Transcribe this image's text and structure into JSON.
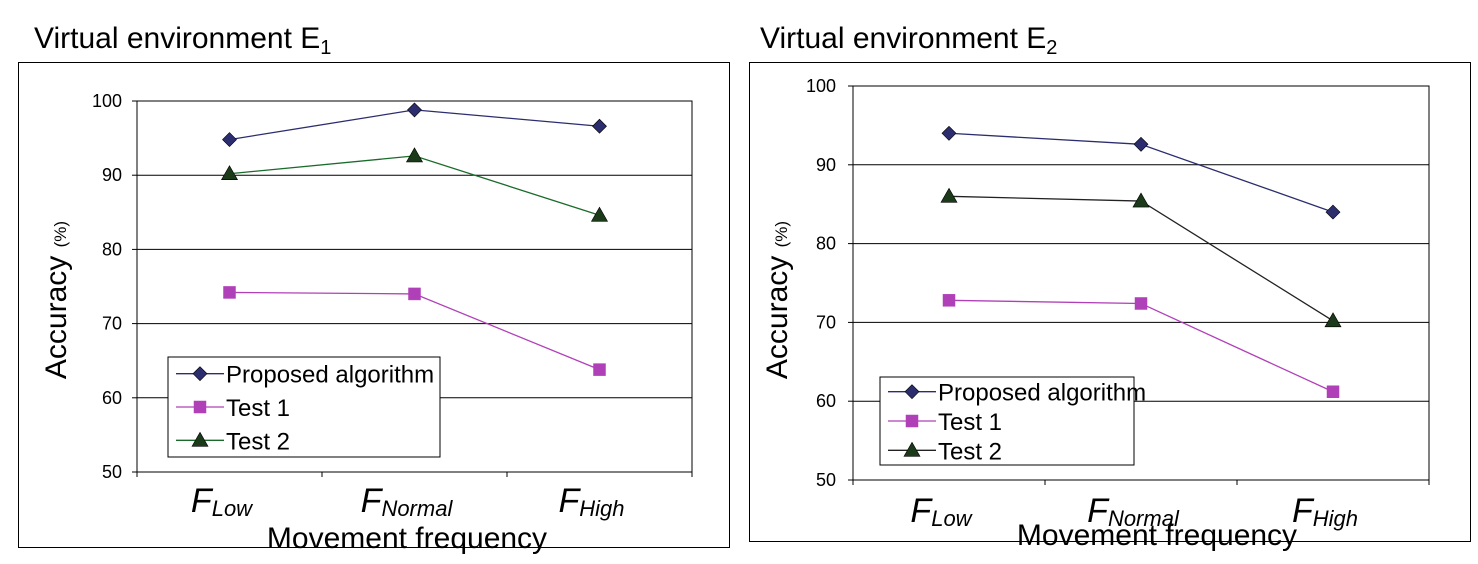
{
  "chart_data": [
    {
      "type": "line",
      "title": "Virtual environment E",
      "title_sub": "1",
      "xlabel": "Movement frequency",
      "ylabel": "Accuracy",
      "ylabel_unit": "(%)",
      "categories": [
        {
          "main": "F",
          "sub": "Low"
        },
        {
          "main": "F",
          "sub": "Normal"
        },
        {
          "main": "F",
          "sub": "High"
        }
      ],
      "ylim": [
        50,
        100
      ],
      "yticks": [
        50,
        60,
        70,
        80,
        90,
        100
      ],
      "grid": true,
      "legend_position": "bottom-left",
      "series": [
        {
          "name": "Proposed algorithm",
          "values": [
            94.8,
            98.8,
            96.6
          ],
          "color": "#2b2d6e",
          "marker": "diamond",
          "marker_color": "#2b2d6e"
        },
        {
          "name": "Test 1",
          "values": [
            74.2,
            74.0,
            63.8
          ],
          "color": "#b040b8",
          "marker": "square",
          "marker_color": "#b040b8"
        },
        {
          "name": "Test 2",
          "values": [
            90.2,
            92.6,
            84.6
          ],
          "color": "#1a6b2a",
          "marker": "triangle",
          "marker_color": "#1a3a1a"
        }
      ]
    },
    {
      "type": "line",
      "title": "Virtual environment E",
      "title_sub": "2",
      "xlabel": "Movement frequency",
      "ylabel": "Accuracy",
      "ylabel_unit": "(%)",
      "categories": [
        {
          "main": "F",
          "sub": "Low"
        },
        {
          "main": "F",
          "sub": "Normal"
        },
        {
          "main": "F",
          "sub": "High"
        }
      ],
      "ylim": [
        50,
        100
      ],
      "yticks": [
        50,
        60,
        70,
        80,
        90,
        100
      ],
      "grid": true,
      "legend_position": "bottom-left",
      "series": [
        {
          "name": "Proposed algorithm",
          "values": [
            94.0,
            92.6,
            84.0
          ],
          "color": "#2b2d6e",
          "marker": "diamond",
          "marker_color": "#2b2d6e"
        },
        {
          "name": "Test 1",
          "values": [
            72.8,
            72.4,
            61.2
          ],
          "color": "#b040b8",
          "marker": "square",
          "marker_color": "#b040b8"
        },
        {
          "name": "Test 2",
          "values": [
            86.0,
            85.4,
            70.2
          ],
          "color": "#222222",
          "marker": "triangle",
          "marker_color": "#1a3a1a"
        }
      ]
    }
  ]
}
